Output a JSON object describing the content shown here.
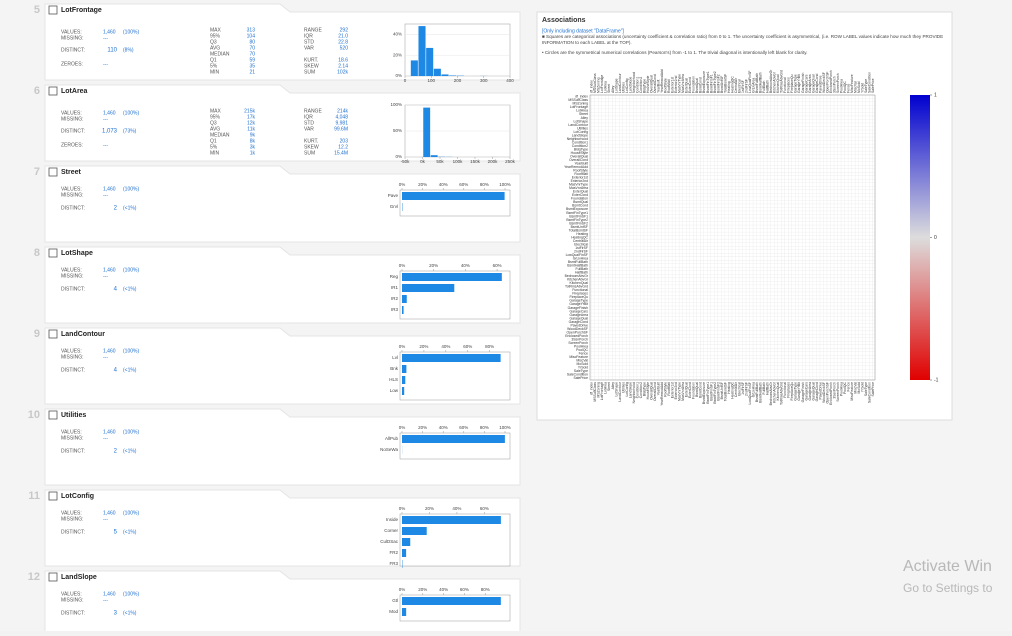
{
  "features": [
    {
      "number": "5",
      "name": "LotFrontage",
      "summary": [
        {
          "label": "VALUES:",
          "value": "1,460",
          "pct": "(100%)"
        },
        {
          "label": "MISSING:",
          "value": "---"
        },
        {
          "label": "DISTINCT:",
          "value": "110",
          "pct": "(8%)"
        },
        {
          "label": "ZEROES:",
          "value": "---"
        }
      ],
      "stats_a": [
        {
          "label": "MAX",
          "value": "313"
        },
        {
          "label": "95%",
          "value": "104"
        },
        {
          "label": "Q3",
          "value": "80"
        },
        {
          "label": "AVG",
          "value": "70"
        },
        {
          "label": "MEDIAN",
          "value": "70"
        },
        {
          "label": "Q1",
          "value": "59"
        },
        {
          "label": "5%",
          "value": "35"
        },
        {
          "label": "MIN",
          "value": "21"
        }
      ],
      "stats_b": [
        {
          "label": "RANGE",
          "value": "292"
        },
        {
          "label": "IQR",
          "value": "21.0"
        },
        {
          "label": "STD",
          "value": "22.8"
        },
        {
          "label": "VAR",
          "value": "520"
        },
        {
          "label": "KURT.",
          "value": "18.6"
        },
        {
          "label": "SKEW",
          "value": "2.14"
        },
        {
          "label": "SUM",
          "value": "102k"
        }
      ],
      "chart": {
        "type": "histogram",
        "color": "#1e88e5",
        "bins": [
          21,
          50.2,
          79.4,
          108.6,
          137.8,
          167,
          196.2,
          225.4,
          254.6,
          283.8,
          313
        ],
        "values": [
          15,
          48,
          27,
          7,
          1.5,
          0.5,
          0.3,
          0,
          0,
          0.1
        ],
        "xlim": [
          0,
          400
        ],
        "xticks": [
          0,
          100,
          200,
          300,
          400
        ],
        "ylim": [
          0,
          50
        ],
        "yticks": [
          {
            "value": 0,
            "label": "0%"
          },
          {
            "value": 20,
            "label": "20%"
          },
          {
            "value": 40,
            "label": "40%"
          }
        ]
      }
    },
    {
      "number": "6",
      "name": "LotArea",
      "summary": [
        {
          "label": "VALUES:",
          "value": "1,460",
          "pct": "(100%)"
        },
        {
          "label": "MISSING:",
          "value": "---"
        },
        {
          "label": "DISTINCT:",
          "value": "1,073",
          "pct": "(73%)"
        },
        {
          "label": "ZEROES:",
          "value": "---"
        }
      ],
      "stats_a": [
        {
          "label": "MAX",
          "value": "215k"
        },
        {
          "label": "95%",
          "value": "17k"
        },
        {
          "label": "Q3",
          "value": "12k"
        },
        {
          "label": "AVG",
          "value": "11k"
        },
        {
          "label": "MEDIAN",
          "value": "9k"
        },
        {
          "label": "Q1",
          "value": "8k"
        },
        {
          "label": "5%",
          "value": "3k"
        },
        {
          "label": "MIN",
          "value": "1k"
        }
      ],
      "stats_b": [
        {
          "label": "RANGE",
          "value": "214k"
        },
        {
          "label": "IQR",
          "value": "4,048"
        },
        {
          "label": "STD",
          "value": "9,981"
        },
        {
          "label": "VAR",
          "value": "99.6M"
        },
        {
          "label": "KURT.",
          "value": "203"
        },
        {
          "label": "SKEW",
          "value": "12.2"
        },
        {
          "label": "SUM",
          "value": "15.4M"
        }
      ],
      "chart": {
        "type": "histogram",
        "color": "#1e88e5",
        "bins": [
          1300,
          22694,
          44088,
          65482,
          86876,
          108270,
          129664,
          151058,
          172452,
          193846,
          215240
        ],
        "values": [
          95,
          3.5,
          0.5,
          0.3,
          0,
          0,
          0,
          0,
          0,
          0.1
        ],
        "xlim": [
          -50000,
          250000
        ],
        "xticks": [
          {
            "value": -50000,
            "label": "-50k"
          },
          {
            "value": 0,
            "label": "0k"
          },
          {
            "value": 50000,
            "label": "50k"
          },
          {
            "value": 100000,
            "label": "100k"
          },
          {
            "value": 150000,
            "label": "150k"
          },
          {
            "value": 200000,
            "label": "200k"
          },
          {
            "value": 250000,
            "label": "250k"
          }
        ],
        "ylim": [
          0,
          100
        ],
        "yticks": [
          {
            "value": 0,
            "label": "0%"
          },
          {
            "value": 50,
            "label": "50%"
          },
          {
            "value": 100,
            "label": "100%"
          }
        ]
      }
    },
    {
      "number": "7",
      "name": "Street",
      "summary": [
        {
          "label": "VALUES:",
          "value": "1,460",
          "pct": "(100%)"
        },
        {
          "label": "MISSING:",
          "value": "---"
        },
        {
          "label": "DISTINCT:",
          "value": "2",
          "pct": "(<1%)"
        }
      ],
      "chart": {
        "type": "hbar",
        "color": "#1e88e5",
        "categories": [
          "Pave",
          "Grvl"
        ],
        "values": [
          99.6,
          0.4
        ],
        "xlim": [
          0,
          100
        ],
        "xticks": [
          {
            "value": 0,
            "label": "0%"
          },
          {
            "value": 20,
            "label": "20%"
          },
          {
            "value": 40,
            "label": "40%"
          },
          {
            "value": 60,
            "label": "60%"
          },
          {
            "value": 80,
            "label": "80%"
          },
          {
            "value": 100,
            "label": "100%"
          }
        ]
      }
    },
    {
      "number": "8",
      "name": "LotShape",
      "summary": [
        {
          "label": "VALUES:",
          "value": "1,460",
          "pct": "(100%)"
        },
        {
          "label": "MISSING:",
          "value": "---"
        },
        {
          "label": "DISTINCT:",
          "value": "4",
          "pct": "(<1%)"
        }
      ],
      "chart": {
        "type": "hbar",
        "color": "#1e88e5",
        "categories": [
          "Reg",
          "IR1",
          "IR2",
          "IR3"
        ],
        "values": [
          63,
          33,
          3,
          1
        ],
        "xlim": [
          0,
          65
        ],
        "xticks": [
          {
            "value": 0,
            "label": "0%"
          },
          {
            "value": 20,
            "label": "20%"
          },
          {
            "value": 40,
            "label": "40%"
          },
          {
            "value": 60,
            "label": "60%"
          }
        ]
      }
    },
    {
      "number": "9",
      "name": "LandContour",
      "summary": [
        {
          "label": "VALUES:",
          "value": "1,460",
          "pct": "(100%)"
        },
        {
          "label": "MISSING:",
          "value": "---"
        },
        {
          "label": "DISTINCT:",
          "value": "4",
          "pct": "(<1%)"
        }
      ],
      "chart": {
        "type": "hbar",
        "color": "#1e88e5",
        "categories": [
          "Lvl",
          "Bnk",
          "HLS",
          "Low"
        ],
        "values": [
          90,
          4,
          3,
          2
        ],
        "xlim": [
          0,
          94
        ],
        "xticks": [
          {
            "value": 0,
            "label": "0%"
          },
          {
            "value": 20,
            "label": "20%"
          },
          {
            "value": 40,
            "label": "40%"
          },
          {
            "value": 60,
            "label": "60%"
          },
          {
            "value": 80,
            "label": "80%"
          }
        ]
      }
    },
    {
      "number": "10",
      "name": "Utilities",
      "summary": [
        {
          "label": "VALUES:",
          "value": "1,460",
          "pct": "(100%)"
        },
        {
          "label": "MISSING:",
          "value": "---"
        },
        {
          "label": "DISTINCT:",
          "value": "2",
          "pct": "(<1%)"
        }
      ],
      "chart": {
        "type": "hbar",
        "color": "#1e88e5",
        "categories": [
          "AllPub",
          "NoSeWa"
        ],
        "values": [
          99.9,
          0.1
        ],
        "xlim": [
          0,
          100
        ],
        "xticks": [
          {
            "value": 0,
            "label": "0%"
          },
          {
            "value": 20,
            "label": "20%"
          },
          {
            "value": 40,
            "label": "40%"
          },
          {
            "value": 60,
            "label": "60%"
          },
          {
            "value": 80,
            "label": "80%"
          },
          {
            "value": 100,
            "label": "100%"
          }
        ]
      }
    },
    {
      "number": "11",
      "name": "LotConfig",
      "summary": [
        {
          "label": "VALUES:",
          "value": "1,460",
          "pct": "(100%)"
        },
        {
          "label": "MISSING:",
          "value": "---"
        },
        {
          "label": "DISTINCT:",
          "value": "5",
          "pct": "(<1%)"
        }
      ],
      "chart": {
        "type": "hbar",
        "color": "#1e88e5",
        "categories": [
          "Inside",
          "Corner",
          "CulDSac",
          "FR2",
          "FR3"
        ],
        "values": [
          72,
          18,
          6,
          3,
          0.3
        ],
        "xlim": [
          0,
          75
        ],
        "xticks": [
          {
            "value": 0,
            "label": "0%"
          },
          {
            "value": 20,
            "label": "20%"
          },
          {
            "value": 40,
            "label": "40%"
          },
          {
            "value": 60,
            "label": "60%"
          }
        ]
      }
    },
    {
      "number": "12",
      "name": "LandSlope",
      "summary": [
        {
          "label": "VALUES:",
          "value": "1,460",
          "pct": "(100%)"
        },
        {
          "label": "MISSING:",
          "value": "---"
        },
        {
          "label": "DISTINCT:",
          "value": "3",
          "pct": "(<1%)"
        }
      ],
      "chart": {
        "type": "hbar",
        "color": "#1e88e5",
        "categories": [
          "Gtl",
          "Mod"
        ],
        "values": [
          95,
          4
        ],
        "xlim": [
          0,
          99
        ],
        "xticks": [
          {
            "value": 0,
            "label": "0%"
          },
          {
            "value": 20,
            "label": "20%"
          },
          {
            "value": 40,
            "label": "40%"
          },
          {
            "value": 60,
            "label": "60%"
          },
          {
            "value": 80,
            "label": "80%"
          }
        ]
      }
    }
  ],
  "associations": {
    "title": "Associations",
    "subtitle": "[Only including dataset \"DataFrame\"]",
    "note_squares": "■ Squares are categorical associations (uncertainty coefficient & correlation ratio) from 0 to 1. The uncertainty coefficient is asymmetrical, (i.e. ROW LABEL values indicate how much they PROVIDE INFORMATION to each LABEL at the TOP).",
    "note_circles": "• Circles are the symmetrical numerical correlations (Pearson's) from -1 to 1. The trivial diagonal is intentionally left blank for clarity.",
    "labels": [
      "df_index",
      "MSSubClass",
      "MSZoning",
      "LotFrontage",
      "LotArea",
      "Street",
      "Alley",
      "LotShape",
      "LandContour",
      "Utilities",
      "LotConfig",
      "LandSlope",
      "Neighborhood",
      "Condition1",
      "Condition2",
      "BldgType",
      "HouseStyle",
      "OverallQual",
      "OverallCond",
      "YearBuilt",
      "YearRemodAdd",
      "RoofStyle",
      "RoofMatl",
      "Exterior1st",
      "Exterior2nd",
      "MasVnrType",
      "MasVnrArea",
      "ExterQual",
      "ExterCond",
      "Foundation",
      "BsmtQual",
      "BsmtCond",
      "BsmtExposure",
      "BsmtFinType1",
      "BsmtFinSF1",
      "BsmtFinType2",
      "BsmtFinSF2",
      "BsmtUnfSF",
      "TotalBsmtSF",
      "Heating",
      "HeatingQC",
      "CentralAir",
      "Electrical",
      "1stFlrSF",
      "2ndFlrSF",
      "LowQualFinSF",
      "GrLivArea",
      "BsmtFullBath",
      "BsmtHalfBath",
      "FullBath",
      "HalfBath",
      "BedroomAbvGr",
      "KitchenAbvGr",
      "KitchenQual",
      "TotRmsAbvGrd",
      "Functional",
      "Fireplaces",
      "FireplaceQu",
      "GarageType",
      "GarageYrBlt",
      "GarageFinish",
      "GarageCars",
      "GarageArea",
      "GarageQual",
      "GarageCond",
      "PavedDrive",
      "WoodDeckSF",
      "OpenPorchSF",
      "EnclosedPorch",
      "3SsnPorch",
      "ScreenPorch",
      "PoolArea",
      "PoolQC",
      "Fence",
      "MiscFeature",
      "MiscVal",
      "MoSold",
      "YrSold",
      "SaleType",
      "SaleCondition",
      "SalePrice"
    ],
    "colorbar_ticks": [
      1,
      0,
      -1
    ]
  },
  "watermark": {
    "line1": "Activate Win",
    "line2": "Go to Settings to"
  }
}
